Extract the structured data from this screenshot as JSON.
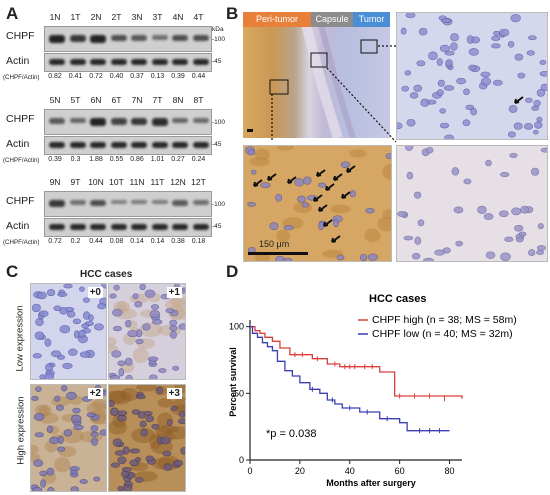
{
  "panels": {
    "a": "A",
    "b": "B",
    "c": "C",
    "d": "D"
  },
  "western_blot": {
    "kda_label": "kDa",
    "ratio_label": "(CHPF/Actin)",
    "protein_chpf": "CHPF",
    "protein_actin": "Actin",
    "marker_100": "-100",
    "marker_45": "-45",
    "blots": [
      {
        "lanes": [
          "1N",
          "1T",
          "2N",
          "2T",
          "3N",
          "3T",
          "4N",
          "4T"
        ],
        "ratios": [
          "0.82",
          "0.41",
          "0.72",
          "0.40",
          "0.37",
          "0.13",
          "0.39",
          "0.44"
        ]
      },
      {
        "lanes": [
          "5N",
          "5T",
          "6N",
          "6T",
          "7N",
          "7T",
          "8N",
          "8T"
        ],
        "ratios": [
          "0.39",
          "0.3",
          "1.88",
          "0.55",
          "0.86",
          "1.01",
          "0.27",
          "0.24"
        ]
      },
      {
        "lanes": [
          "9N",
          "9T",
          "10N",
          "10T",
          "11N",
          "11T",
          "12N",
          "12T"
        ],
        "ratios": [
          "0.72",
          "0.2",
          "0.44",
          "0.08",
          "0.14",
          "0.14",
          "0.38",
          "0.18"
        ]
      }
    ]
  },
  "ihc_b": {
    "tag_peri": "Peri-tumor",
    "tag_capsule": "Capsule",
    "tag_tumor": "Tumor",
    "scale_bar": "150 μm",
    "colors": {
      "peri": "#e8803a",
      "capsule": "#8c8c8c",
      "tumor": "#4a8fd6"
    }
  },
  "ihc_c": {
    "title": "HCC cases",
    "row_low": "Low expression",
    "row_high": "High expression",
    "scores": [
      "+0",
      "+1",
      "+2",
      "+3"
    ]
  },
  "chart_data": {
    "type": "line",
    "title": "HCC cases",
    "xlabel": "Months after surgery",
    "ylabel": "Percent survival",
    "xlim": [
      0,
      85
    ],
    "ylim": [
      0,
      105
    ],
    "xticks": [
      0,
      20,
      40,
      60,
      80
    ],
    "yticks": [
      0,
      50,
      100
    ],
    "annotation": "*p = 0.038",
    "series": [
      {
        "name": "CHPF high (n = 38; MS = 58m)",
        "color": "#d9403a",
        "steps": [
          [
            0,
            100
          ],
          [
            2,
            97
          ],
          [
            4,
            95
          ],
          [
            6,
            92
          ],
          [
            9,
            89
          ],
          [
            12,
            84
          ],
          [
            16,
            79
          ],
          [
            25,
            76
          ],
          [
            31,
            72
          ],
          [
            36,
            70
          ],
          [
            44,
            70
          ],
          [
            52,
            66
          ],
          [
            58,
            48
          ],
          [
            85,
            46
          ]
        ],
        "censors": [
          [
            18,
            79
          ],
          [
            21,
            79
          ],
          [
            27,
            76
          ],
          [
            34,
            72
          ],
          [
            38,
            70
          ],
          [
            40,
            70
          ],
          [
            42,
            70
          ],
          [
            46,
            70
          ],
          [
            49,
            70
          ],
          [
            60,
            48
          ],
          [
            66,
            48
          ],
          [
            72,
            48
          ],
          [
            78,
            46
          ]
        ]
      },
      {
        "name": "CHPF low (n = 40; MS = 32m)",
        "color": "#3b3fb0",
        "steps": [
          [
            0,
            100
          ],
          [
            1,
            95
          ],
          [
            3,
            92
          ],
          [
            5,
            88
          ],
          [
            7,
            85
          ],
          [
            9,
            82
          ],
          [
            11,
            74
          ],
          [
            14,
            67
          ],
          [
            17,
            63
          ],
          [
            20,
            58
          ],
          [
            24,
            53
          ],
          [
            28,
            50
          ],
          [
            31,
            45
          ],
          [
            34,
            42
          ],
          [
            37,
            39
          ],
          [
            44,
            36
          ],
          [
            52,
            31
          ],
          [
            60,
            28
          ],
          [
            63,
            22
          ],
          [
            80,
            22
          ]
        ],
        "censors": [
          [
            25,
            53
          ],
          [
            33,
            45
          ],
          [
            40,
            39
          ],
          [
            47,
            36
          ],
          [
            55,
            31
          ],
          [
            68,
            22
          ],
          [
            72,
            22
          ],
          [
            76,
            22
          ]
        ]
      }
    ]
  }
}
